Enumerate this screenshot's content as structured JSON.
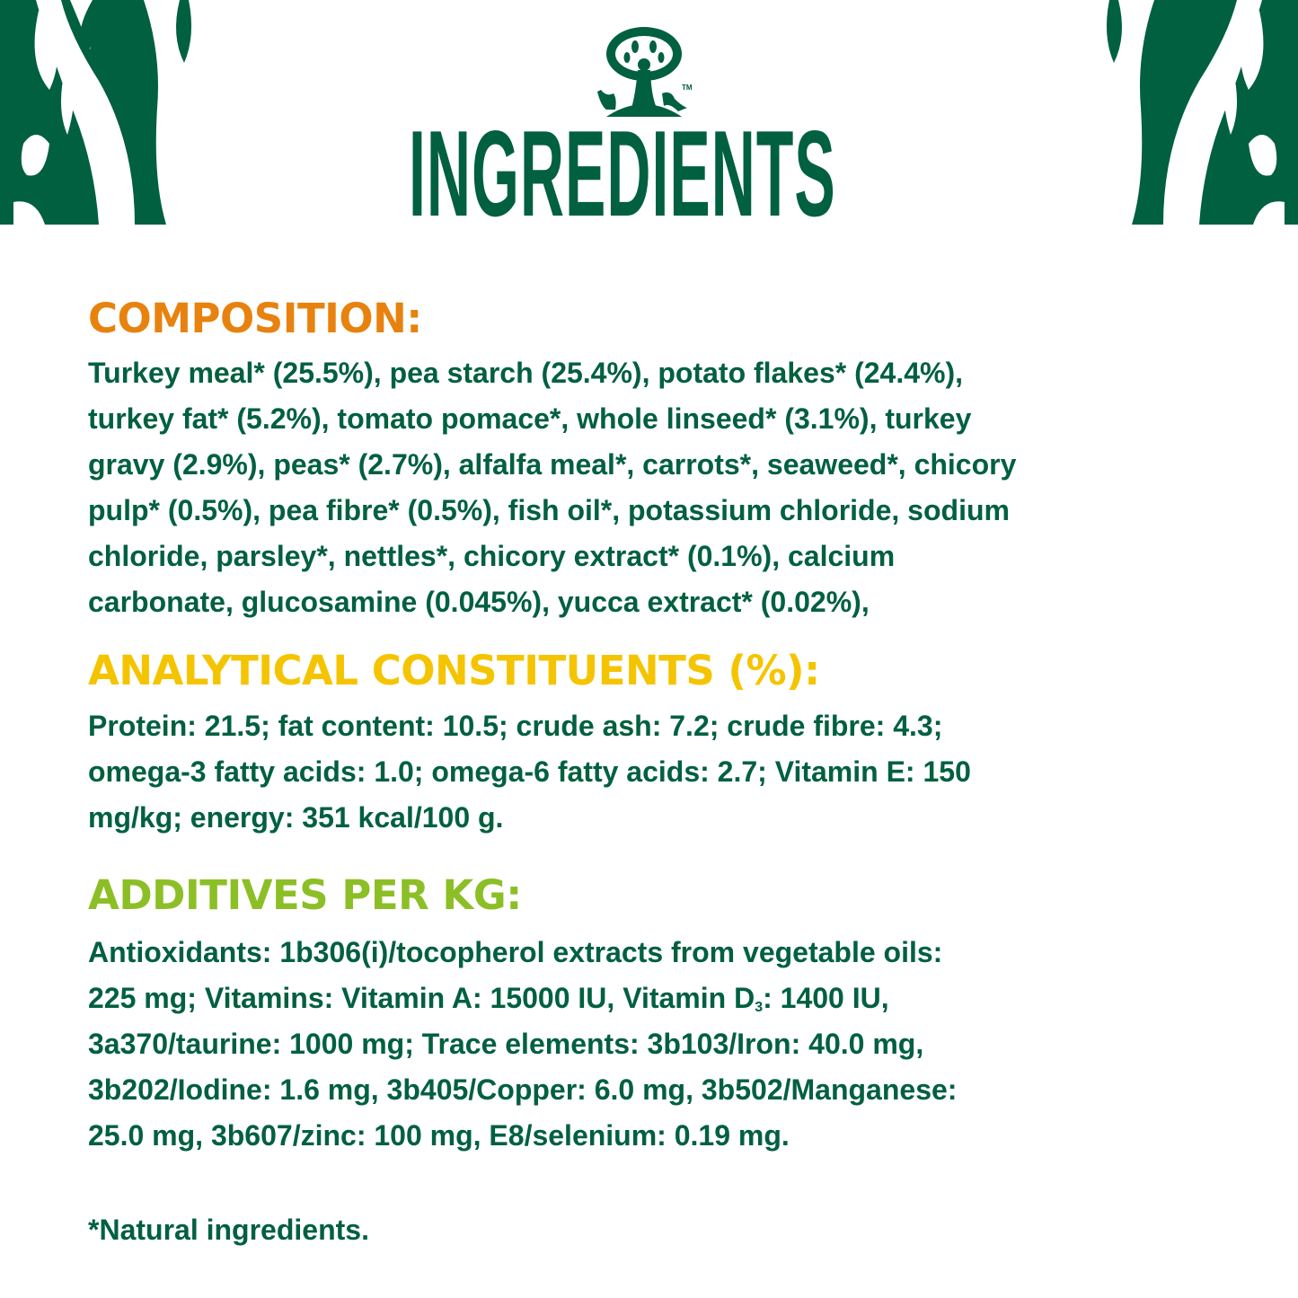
{
  "header": {
    "title": "INGREDIENTS",
    "logo_trademark": "TM",
    "brand_color": "#00603F"
  },
  "composition": {
    "heading": "COMPOSITION:",
    "color": "#E8820E",
    "lines": [
      "Turkey meal* (25.5%), pea starch (25.4%), potato flakes* (24.4%),",
      "turkey fat* (5.2%), tomato pomace*, whole linseed* (3.1%), turkey",
      "gravy (2.9%), peas* (2.7%), alfalfa meal*, carrots*, seaweed*, chicory",
      "pulp* (0.5%), pea fibre* (0.5%), fish oil*, potassium chloride, sodium",
      "chloride, parsley*, nettles*, chicory extract* (0.1%), calcium",
      "carbonate, glucosamine (0.045%), yucca extract* (0.02%),"
    ]
  },
  "analytical": {
    "heading": "ANALYTICAL CONSTITUENTS (%):",
    "color": "#F5C400",
    "lines": [
      "Protein: 21.5; fat content: 10.5; crude ash: 7.2; crude fibre: 4.3;",
      "omega-3 fatty acids: 1.0; omega-6 fatty acids: 2.7; Vitamin E: 150",
      "mg/kg; energy: 351 kcal/100 g."
    ]
  },
  "additives": {
    "heading": "ADDITIVES PER KG:",
    "color": "#8CBF26",
    "lines": [
      "Antioxidants: 1b306(i)/tocopherol extracts from vegetable oils:",
      "225 mg; Vitamins: Vitamin A: 15000 IU, Vitamin D",
      "3",
      ": 1400 IU,",
      "3a370/taurine: 1000 mg; Trace elements: 3b103/Iron: 40.0 mg,",
      "3b202/Iodine: 1.6 mg, 3b405/Copper: 6.0 mg, 3b502/Manganese:",
      "25.0 mg, 3b607/zinc: 100 mg, E8/selenium: 0.19 mg."
    ]
  },
  "footnote": "*Natural ingredients."
}
